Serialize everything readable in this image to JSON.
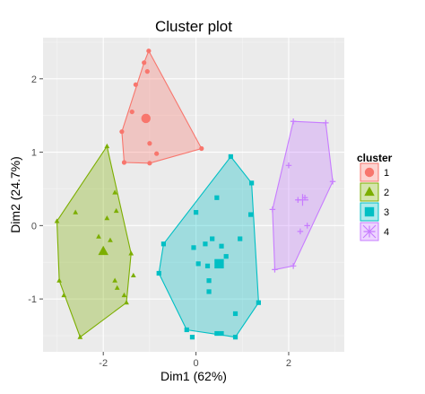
{
  "chart_data": {
    "type": "scatter",
    "title": "Cluster plot",
    "xlabel": "Dim1 (62%)",
    "ylabel": "Dim2 (24.7%)",
    "xlim": [
      -3.3,
      3.2
    ],
    "ylim": [
      -1.72,
      2.56
    ],
    "xticks": [
      -2,
      0,
      2
    ],
    "yticks": [
      -1,
      0,
      1,
      2
    ],
    "grid": true,
    "legend": {
      "title": "cluster",
      "position": "right"
    },
    "series": [
      {
        "name": "1",
        "color": "#F8766D",
        "marker": "circle",
        "points": [
          [
            -1.02,
            2.38
          ],
          [
            -1.12,
            2.22
          ],
          [
            -1.05,
            2.1
          ],
          [
            -1.3,
            1.92
          ],
          [
            -1.38,
            1.55
          ],
          [
            -1.6,
            1.28
          ],
          [
            -1.0,
            1.12
          ],
          [
            -0.85,
            0.98
          ],
          [
            0.12,
            1.05
          ],
          [
            -1.55,
            0.86
          ],
          [
            -1.0,
            0.85
          ]
        ],
        "centroid": [
          -1.08,
          1.46
        ],
        "hull": [
          [
            -1.02,
            2.38
          ],
          [
            0.12,
            1.05
          ],
          [
            -1.0,
            0.85
          ],
          [
            -1.55,
            0.86
          ],
          [
            -1.6,
            1.28
          ],
          [
            -1.12,
            2.22
          ]
        ]
      },
      {
        "name": "2",
        "color": "#7CAE00",
        "marker": "triangle",
        "points": [
          [
            -1.92,
            1.08
          ],
          [
            -1.75,
            0.45
          ],
          [
            -1.72,
            0.2
          ],
          [
            -1.92,
            0.1
          ],
          [
            -2.6,
            0.18
          ],
          [
            -3.0,
            0.06
          ],
          [
            -2.1,
            -0.15
          ],
          [
            -1.85,
            -0.2
          ],
          [
            -1.4,
            -0.38
          ],
          [
            -1.35,
            -0.68
          ],
          [
            -1.75,
            -0.75
          ],
          [
            -2.95,
            -0.75
          ],
          [
            -2.85,
            -0.95
          ],
          [
            -1.7,
            -0.85
          ],
          [
            -1.55,
            -0.95
          ],
          [
            -1.5,
            -1.05
          ],
          [
            -2.5,
            -1.52
          ]
        ],
        "centroid": [
          -2.0,
          -0.35
        ],
        "hull": [
          [
            -1.92,
            1.08
          ],
          [
            -1.4,
            -0.38
          ],
          [
            -1.5,
            -1.05
          ],
          [
            -2.5,
            -1.52
          ],
          [
            -2.95,
            -0.75
          ],
          [
            -3.0,
            0.06
          ]
        ]
      },
      {
        "name": "3",
        "color": "#00BFC4",
        "marker": "square",
        "points": [
          [
            0.75,
            0.94
          ],
          [
            1.2,
            0.58
          ],
          [
            0.45,
            0.38
          ],
          [
            0.0,
            0.18
          ],
          [
            1.18,
            0.15
          ],
          [
            -0.7,
            -0.25
          ],
          [
            0.35,
            -0.18
          ],
          [
            0.95,
            -0.18
          ],
          [
            0.2,
            -0.25
          ],
          [
            -0.05,
            -0.3
          ],
          [
            0.55,
            -0.28
          ],
          [
            0.05,
            -0.52
          ],
          [
            0.25,
            -0.55
          ],
          [
            0.65,
            -0.42
          ],
          [
            -0.8,
            -0.65
          ],
          [
            0.28,
            -0.75
          ],
          [
            0.28,
            -0.9
          ],
          [
            1.35,
            -1.05
          ],
          [
            0.85,
            -1.2
          ],
          [
            -0.2,
            -1.42
          ],
          [
            0.55,
            -1.47
          ],
          [
            0.45,
            -1.47
          ],
          [
            0.85,
            -1.52
          ],
          [
            -0.08,
            -1.52
          ]
        ],
        "centroid": [
          0.5,
          -0.52
        ],
        "hull": [
          [
            0.75,
            0.94
          ],
          [
            1.2,
            0.58
          ],
          [
            1.35,
            -1.05
          ],
          [
            0.85,
            -1.52
          ],
          [
            -0.2,
            -1.42
          ],
          [
            -0.8,
            -0.65
          ],
          [
            -0.7,
            -0.25
          ]
        ]
      },
      {
        "name": "4",
        "color": "#C77CFF",
        "marker": "cross",
        "points": [
          [
            2.1,
            1.42
          ],
          [
            2.8,
            1.4
          ],
          [
            2.0,
            0.82
          ],
          [
            2.95,
            0.6
          ],
          [
            2.35,
            0.38
          ],
          [
            2.2,
            0.35
          ],
          [
            1.65,
            0.22
          ],
          [
            2.4,
            0.0
          ],
          [
            2.25,
            -0.08
          ],
          [
            2.1,
            -0.55
          ],
          [
            1.7,
            -0.6
          ]
        ],
        "centroid": [
          2.3,
          0.35
        ],
        "hull": [
          [
            2.1,
            1.42
          ],
          [
            2.8,
            1.4
          ],
          [
            2.95,
            0.6
          ],
          [
            2.1,
            -0.55
          ],
          [
            1.7,
            -0.6
          ],
          [
            1.65,
            0.22
          ]
        ]
      }
    ]
  }
}
